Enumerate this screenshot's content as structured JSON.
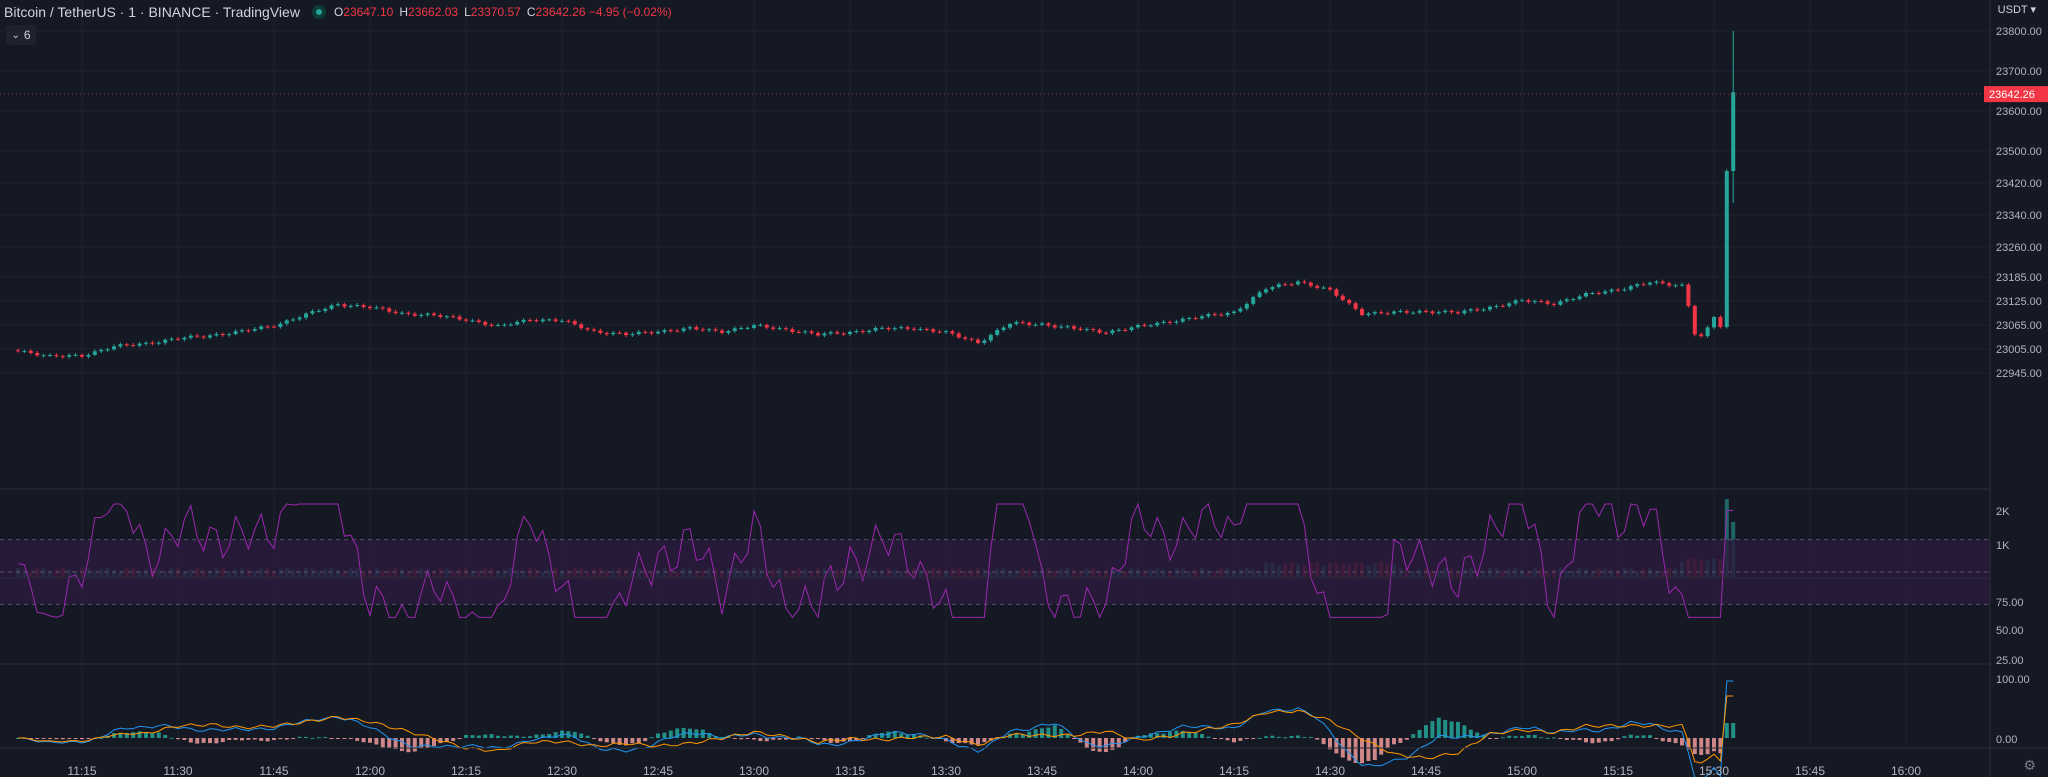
{
  "header": {
    "title": "Bitcoin / TetherUS · 1 · BINANCE · TradingView",
    "ohlc": [
      {
        "label": "O",
        "value": "23647.10"
      },
      {
        "label": "H",
        "value": "23662.03"
      },
      {
        "label": "L",
        "value": "23370.57"
      },
      {
        "label": "C",
        "value": "23642.26 −4.95 (−0.02%)"
      }
    ],
    "collapse_count": "6"
  },
  "currency": "USDT",
  "colors": {
    "up": "#26a69a",
    "down": "#f23645",
    "rsi": "#9c27b0",
    "signal": "#ff9800",
    "macd": "#2196f3"
  },
  "icons": {
    "collapse": "chevron-down-icon",
    "settings": "gear-icon",
    "status": "status-dot-icon"
  },
  "chart_data": {
    "type": "candlestick",
    "interval_minutes": 1,
    "x_ticks": [
      "11:15",
      "11:30",
      "11:45",
      "12:00",
      "12:15",
      "12:30",
      "12:45",
      "13:00",
      "13:15",
      "13:30",
      "13:45",
      "14:00",
      "14:15",
      "14:30",
      "14:45",
      "15:00",
      "15:15",
      "15:30",
      "15:45",
      "16:00"
    ],
    "y_ticks": [
      "23800.00",
      "23700.00",
      "23600.00",
      "23500.00",
      "23420.00",
      "23340.00",
      "23260.00",
      "23185.00",
      "23125.00",
      "23065.00",
      "23005.00",
      "22945.00"
    ],
    "last_price": "23642.26",
    "anchors": [
      [
        "11:05",
        23003
      ],
      [
        "11:10",
        22985
      ],
      [
        "11:15",
        22990
      ],
      [
        "11:20",
        23010
      ],
      [
        "11:25",
        23020
      ],
      [
        "11:30",
        23030
      ],
      [
        "11:35",
        23040
      ],
      [
        "11:40",
        23048
      ],
      [
        "11:45",
        23065
      ],
      [
        "11:50",
        23090
      ],
      [
        "11:55",
        23118
      ],
      [
        "12:00",
        23108
      ],
      [
        "12:05",
        23095
      ],
      [
        "12:10",
        23088
      ],
      [
        "12:15",
        23080
      ],
      [
        "12:20",
        23060
      ],
      [
        "12:25",
        23080
      ],
      [
        "12:30",
        23075
      ],
      [
        "12:35",
        23050
      ],
      [
        "12:40",
        23040
      ],
      [
        "12:45",
        23050
      ],
      [
        "12:50",
        23055
      ],
      [
        "12:55",
        23050
      ],
      [
        "13:00",
        23062
      ],
      [
        "13:05",
        23055
      ],
      [
        "13:10",
        23040
      ],
      [
        "13:15",
        23048
      ],
      [
        "13:20",
        23055
      ],
      [
        "13:25",
        23058
      ],
      [
        "13:30",
        23045
      ],
      [
        "13:35",
        23022
      ],
      [
        "13:40",
        23068
      ],
      [
        "13:45",
        23068
      ],
      [
        "13:50",
        23055
      ],
      [
        "13:55",
        23048
      ],
      [
        "14:00",
        23060
      ],
      [
        "14:05",
        23075
      ],
      [
        "14:10",
        23085
      ],
      [
        "14:15",
        23098
      ],
      [
        "14:20",
        23155
      ],
      [
        "14:25",
        23175
      ],
      [
        "14:30",
        23150
      ],
      [
        "14:35",
        23095
      ],
      [
        "14:40",
        23095
      ],
      [
        "14:45",
        23100
      ],
      [
        "14:50",
        23095
      ],
      [
        "14:55",
        23110
      ],
      [
        "15:00",
        23125
      ],
      [
        "15:05",
        23120
      ],
      [
        "15:10",
        23140
      ],
      [
        "15:15",
        23155
      ],
      [
        "15:20",
        23170
      ],
      [
        "15:25",
        23165
      ],
      [
        "15:26",
        23115
      ],
      [
        "15:27",
        23045
      ],
      [
        "15:28",
        23035
      ],
      [
        "15:29",
        23055
      ],
      [
        "15:30",
        23085
      ],
      [
        "15:31",
        23060
      ],
      [
        "15:32",
        23450
      ],
      [
        "15:33",
        23647
      ]
    ],
    "rsi": {
      "levels": [
        "75.00",
        "50.00",
        "25.00"
      ],
      "band": [
        30,
        70
      ]
    },
    "macd": {
      "levels": [
        "100.00",
        "0.00"
      ]
    },
    "volume": {
      "levels": [
        "2K",
        "1K"
      ]
    }
  }
}
